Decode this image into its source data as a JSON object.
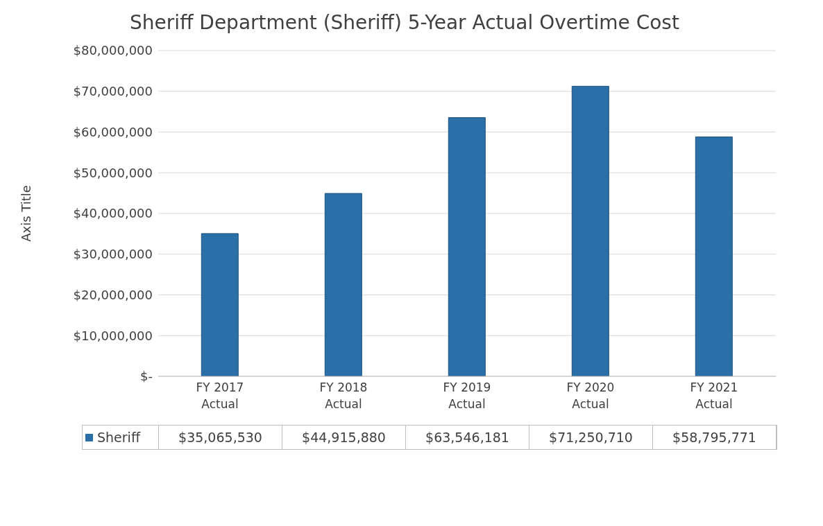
{
  "chart_data": {
    "type": "bar",
    "title": "Sheriff Department (Sheriff) 5-Year Actual Overtime Cost",
    "ylabel": "Axis Title",
    "categories": [
      "FY 2017\nActual",
      "FY 2018\nActual",
      "FY 2019\nActual",
      "FY 2020\nActual",
      "FY 2021\nActual"
    ],
    "series": [
      {
        "name": "Sheriff",
        "color": "#2a6fa8",
        "values": [
          35065530,
          44915880,
          63546181,
          71250710,
          58795771
        ],
        "value_labels": [
          "$35,065,530",
          "$44,915,880",
          "$63,546,181",
          "$71,250,710",
          "$58,795,771"
        ]
      }
    ],
    "ylim": [
      0,
      80000000
    ],
    "yticks": [
      {
        "value": 0,
        "label": "$-"
      },
      {
        "value": 10000000,
        "label": "$10,000,000"
      },
      {
        "value": 20000000,
        "label": "$20,000,000"
      },
      {
        "value": 30000000,
        "label": "$30,000,000"
      },
      {
        "value": 40000000,
        "label": "$40,000,000"
      },
      {
        "value": 50000000,
        "label": "$50,000,000"
      },
      {
        "value": 60000000,
        "label": "$60,000,000"
      },
      {
        "value": 70000000,
        "label": "$70,000,000"
      },
      {
        "value": 80000000,
        "label": "$80,000,000"
      }
    ],
    "grid": "y",
    "legend": "bottom"
  }
}
